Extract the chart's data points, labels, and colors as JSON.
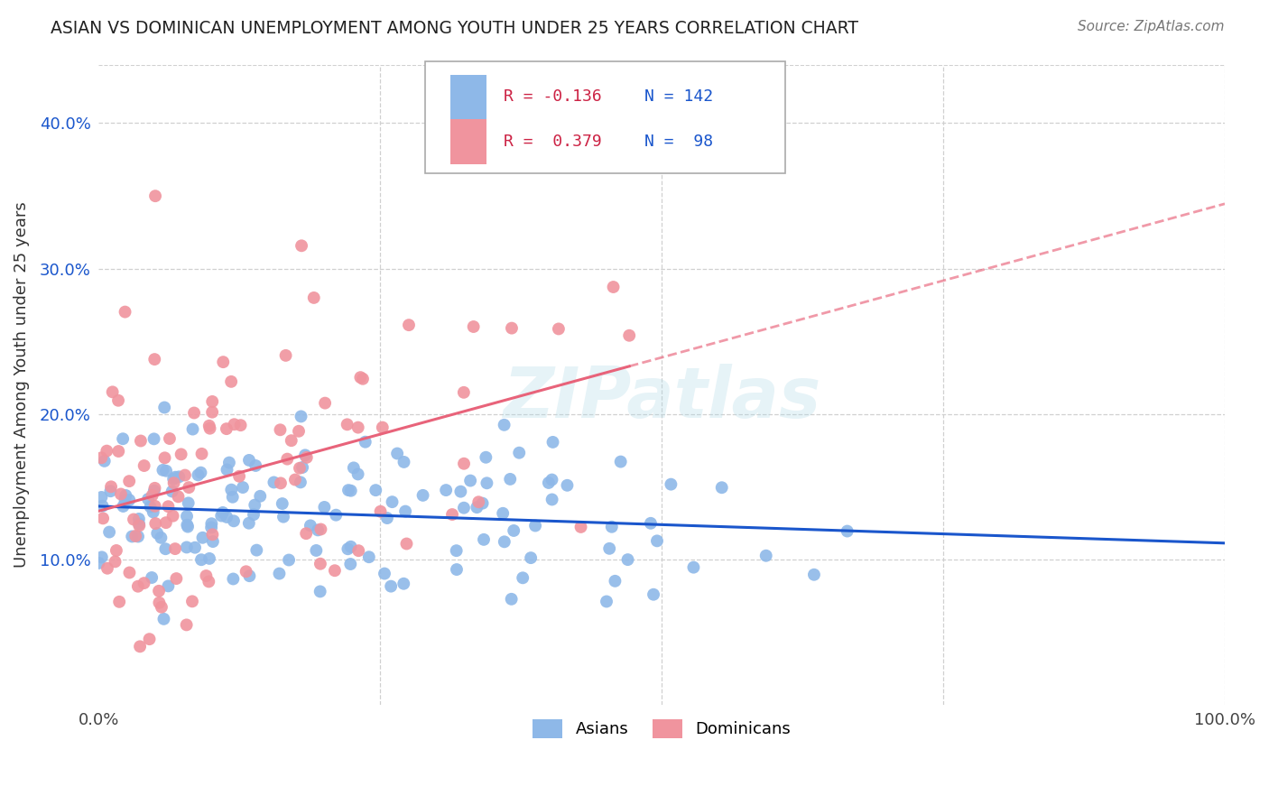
{
  "title": "ASIAN VS DOMINICAN UNEMPLOYMENT AMONG YOUTH UNDER 25 YEARS CORRELATION CHART",
  "source": "Source: ZipAtlas.com",
  "ylabel": "Unemployment Among Youth under 25 years",
  "xlim": [
    0.0,
    1.0
  ],
  "ylim": [
    0.0,
    0.44
  ],
  "xtick_vals": [
    0.0,
    0.25,
    0.5,
    0.75,
    1.0
  ],
  "xtick_labels": [
    "0.0%",
    "",
    "",
    "",
    "100.0%"
  ],
  "ytick_vals": [
    0.0,
    0.1,
    0.2,
    0.3,
    0.4
  ],
  "ytick_labels": [
    "",
    "10.0%",
    "20.0%",
    "30.0%",
    "40.0%"
  ],
  "asian_color": "#8eb8e8",
  "dominican_color": "#f0949e",
  "asian_line_color": "#1a56cc",
  "dominican_line_color": "#e8637a",
  "R_asian": -0.136,
  "N_asian": 142,
  "R_dominican": 0.379,
  "N_dominican": 98,
  "legend_R_color": "#cc2244",
  "legend_N_color": "#1a56cc",
  "watermark": "ZIPatlas",
  "background_color": "#ffffff",
  "grid_color": "#d0d0d0",
  "asian_seed": 12,
  "dominican_seed": 55
}
